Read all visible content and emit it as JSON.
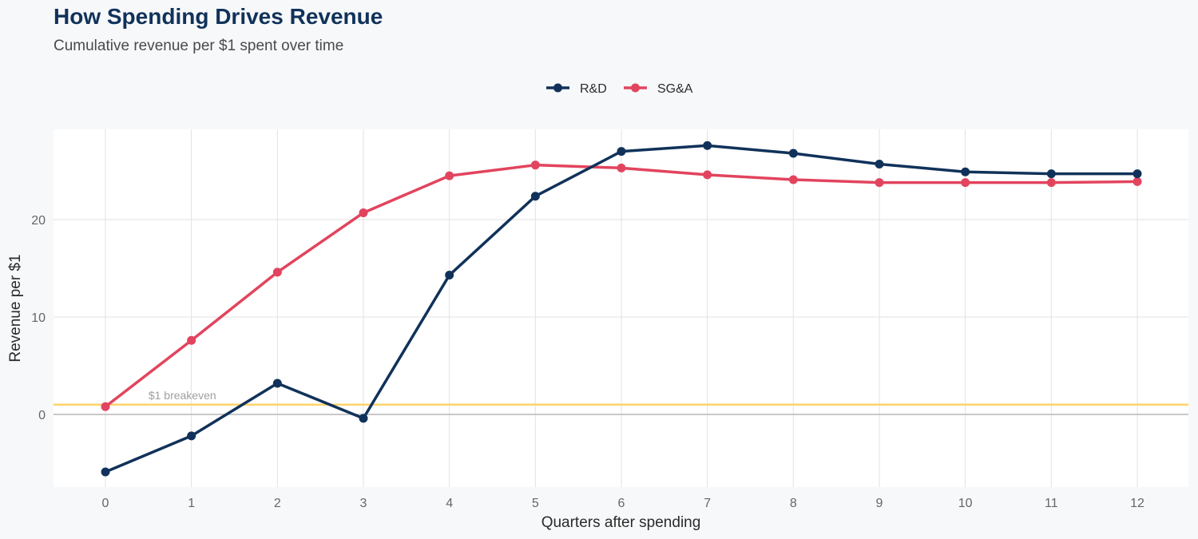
{
  "header": {
    "title": "How Spending Drives Revenue",
    "subtitle": "Cumulative revenue per $1 spent over time"
  },
  "colors": {
    "rd": "#10325a",
    "sga": "#e2445e",
    "breakeven": "#ffd36b",
    "panel": "#ffffff",
    "background": "#f7f8fa",
    "grid": "#e2e2e2",
    "zero_line": "#c8c8c8"
  },
  "chart_data": {
    "type": "line",
    "title": "How Spending Drives Revenue",
    "subtitle": "Cumulative revenue per $1 spent over time",
    "xlabel": "Quarters after spending",
    "ylabel": "Revenue per $1",
    "x": [
      0,
      1,
      2,
      3,
      4,
      5,
      6,
      7,
      8,
      9,
      10,
      11,
      12
    ],
    "xlim": [
      -0.6,
      12.6
    ],
    "ylim": [
      -7.5,
      29.5
    ],
    "yticks": [
      0,
      10,
      20
    ],
    "grid": true,
    "legend_position": "top",
    "series": [
      {
        "name": "R&D",
        "color": "#10325a",
        "values": [
          -5.9,
          -2.2,
          3.2,
          -0.4,
          14.3,
          22.4,
          27.0,
          27.6,
          26.8,
          25.7,
          24.9,
          24.7,
          24.7
        ]
      },
      {
        "name": "SG&A",
        "color": "#e2445e",
        "values": [
          0.8,
          7.6,
          14.6,
          20.7,
          24.5,
          25.6,
          25.3,
          24.6,
          24.1,
          23.8,
          23.8,
          23.8,
          23.9
        ]
      }
    ],
    "reference_lines": [
      {
        "y": 1,
        "label": "$1 breakeven",
        "color": "#ffd36b"
      }
    ]
  }
}
